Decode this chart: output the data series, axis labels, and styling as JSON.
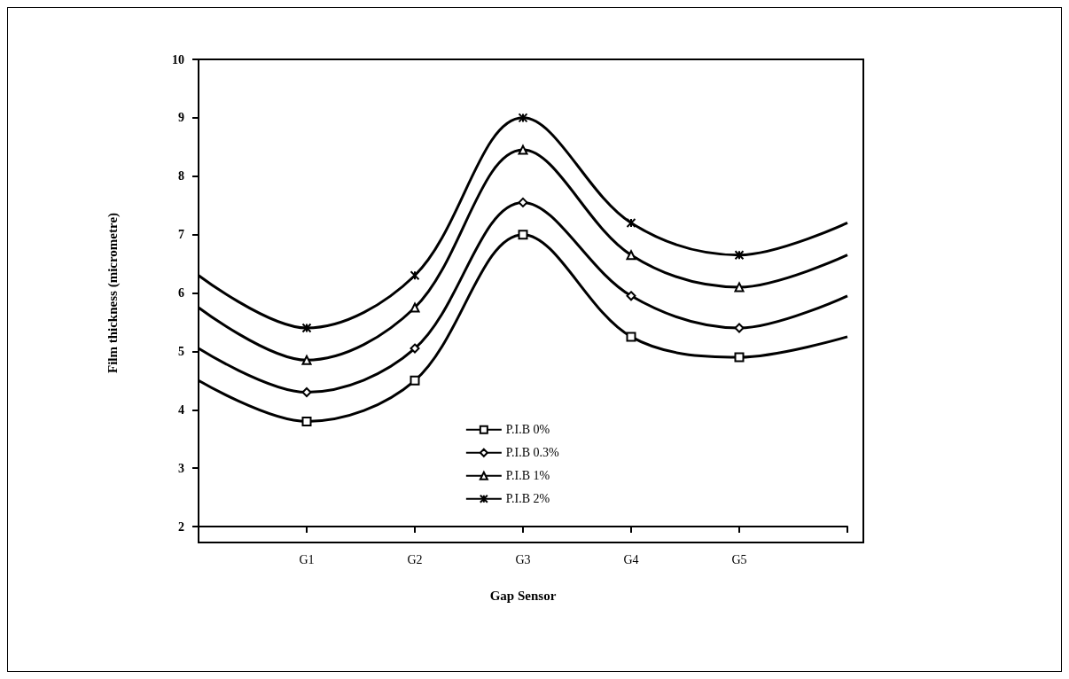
{
  "chart_data": {
    "type": "line",
    "xlabel": "Gap Sensor",
    "ylabel": "Film thickness (micrometre)",
    "categories": [
      null,
      "G1",
      "G2",
      "G3",
      "G4",
      "G5",
      null
    ],
    "series": [
      {
        "name": "P.I.B 0%",
        "color": "#000000",
        "marker": "square",
        "values": [
          4.5,
          3.8,
          4.5,
          7.0,
          5.25,
          4.9,
          5.25
        ]
      },
      {
        "name": "P.I.B 0.3%",
        "color": "#000000",
        "marker": "diamond",
        "values": [
          5.05,
          4.3,
          5.05,
          7.55,
          5.95,
          5.4,
          5.95
        ]
      },
      {
        "name": "P.I.B 1%",
        "color": "#000000",
        "marker": "triangle",
        "values": [
          5.75,
          4.85,
          5.75,
          8.45,
          6.65,
          6.1,
          6.65
        ]
      },
      {
        "name": "P.I.B 2%",
        "color": "#000000",
        "marker": "cross",
        "values": [
          6.3,
          5.4,
          6.3,
          9.0,
          7.2,
          6.65,
          7.2
        ]
      }
    ],
    "ylim": [
      2,
      10
    ],
    "yticks": [
      2,
      3,
      4,
      5,
      6,
      7,
      8,
      9,
      10
    ],
    "grid": false,
    "legend": "bottom",
    "line_style": "solid"
  }
}
